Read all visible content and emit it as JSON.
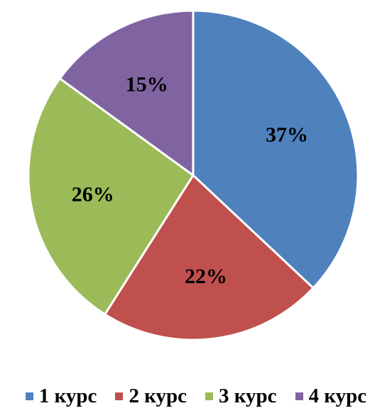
{
  "chart_data": {
    "type": "pie",
    "categories": [
      "1 курс",
      "2 курс",
      "3 курс",
      "4 курс"
    ],
    "values": [
      37,
      22,
      26,
      15
    ],
    "labels": [
      "37%",
      "22%",
      "26%",
      "15%"
    ],
    "colors": [
      "#4f81bd",
      "#c0504d",
      "#9bbb59",
      "#8064a2"
    ],
    "title": "",
    "legend_position": "bottom"
  }
}
